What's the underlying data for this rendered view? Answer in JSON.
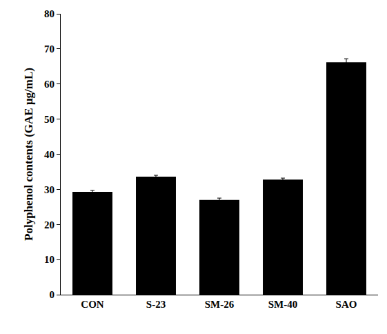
{
  "chart_data": {
    "type": "bar",
    "y_label": "Polyphenol contents (GAE μg/mL)",
    "categories": [
      "CON",
      "S-23",
      "SM-26",
      "SM-40",
      "SAO"
    ],
    "values": [
      29.3,
      33.6,
      27.0,
      32.8,
      66.2
    ],
    "error": [
      0.4,
      0.4,
      0.5,
      0.4,
      1.0
    ],
    "color": "#000000",
    "ylim": [
      0,
      80
    ],
    "yticks": [
      0,
      10,
      20,
      30,
      40,
      50,
      60,
      70,
      80
    ],
    "grid": false
  }
}
